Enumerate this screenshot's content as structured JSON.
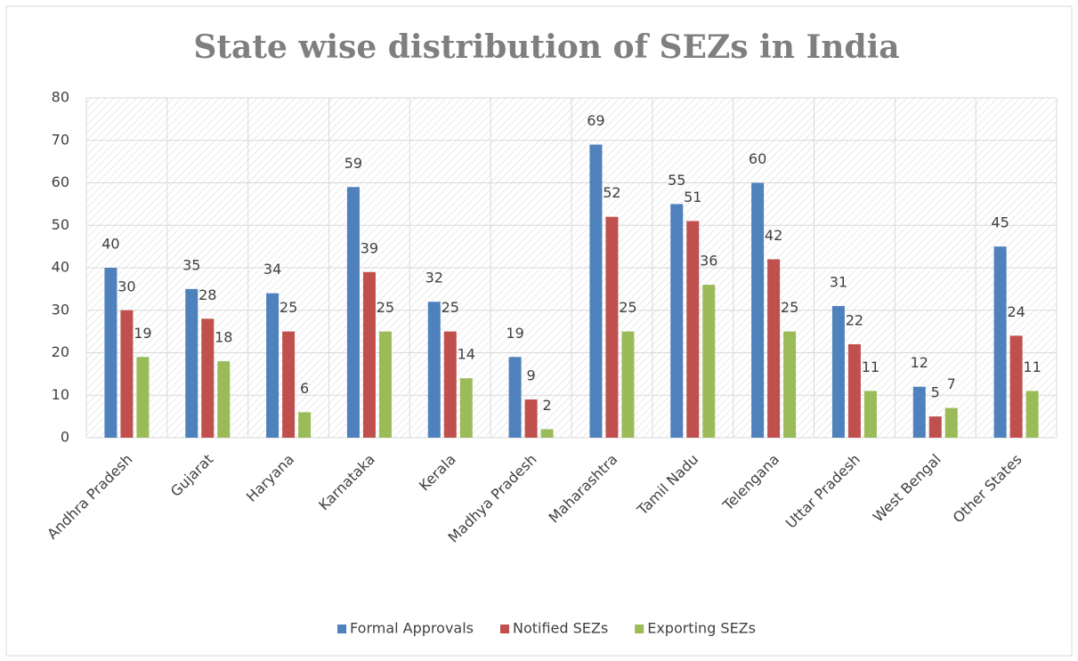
{
  "chart_data": {
    "type": "bar",
    "title": "State wise distribution of SEZs in India",
    "categories": [
      "Andhra Pradesh",
      "Gujarat",
      "Haryana",
      "Karnataka",
      "Kerala",
      "Madhya Pradesh",
      "Maharashtra",
      "Tamil Nadu",
      "Telengana",
      "Uttar Pradesh",
      "West Bengal",
      "Other States"
    ],
    "series": [
      {
        "name": "Formal Approvals",
        "color": "#4f81bd",
        "values": [
          40,
          35,
          34,
          59,
          32,
          19,
          69,
          55,
          60,
          31,
          12,
          45
        ]
      },
      {
        "name": "Notified SEZs",
        "color": "#c0504d",
        "values": [
          30,
          28,
          25,
          39,
          25,
          9,
          52,
          51,
          42,
          22,
          5,
          24
        ]
      },
      {
        "name": "Exporting SEZs",
        "color": "#9bbb59",
        "values": [
          19,
          18,
          6,
          25,
          14,
          2,
          25,
          36,
          25,
          11,
          7,
          11
        ]
      }
    ],
    "ylim": [
      0,
      80
    ],
    "yticks": [
      0,
      10,
      20,
      30,
      40,
      50,
      60,
      70,
      80
    ],
    "grid": true,
    "legend": "bottom"
  }
}
